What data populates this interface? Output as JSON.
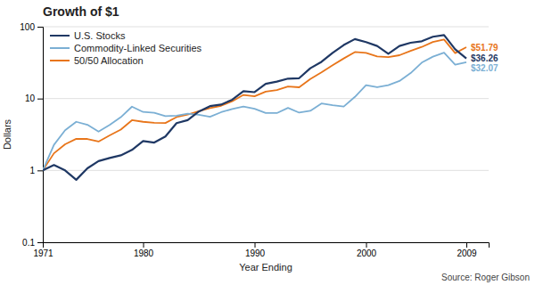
{
  "chart_data": {
    "type": "line",
    "title": "Growth of $1",
    "xlabel": "Year Ending",
    "ylabel": "Dollars",
    "source": "Source: Roger Gibson",
    "x": [
      1971,
      1972,
      1973,
      1974,
      1975,
      1976,
      1977,
      1978,
      1979,
      1980,
      1981,
      1982,
      1983,
      1984,
      1985,
      1986,
      1987,
      1988,
      1989,
      1990,
      1991,
      1992,
      1993,
      1994,
      1995,
      1996,
      1997,
      1998,
      1999,
      2000,
      2001,
      2002,
      2003,
      2004,
      2005,
      2006,
      2007,
      2008,
      2009
    ],
    "series": [
      {
        "name": "50/50 Allocation",
        "color": "#E8751A",
        "values": [
          1.0,
          1.73,
          2.31,
          2.75,
          2.74,
          2.52,
          3.07,
          3.7,
          5.0,
          4.75,
          4.59,
          4.57,
          5.53,
          5.98,
          6.67,
          7.35,
          7.94,
          9.18,
          11.24,
          10.74,
          12.47,
          13.15,
          14.73,
          14.35,
          18.72,
          23.12,
          29.12,
          36.17,
          44.37,
          43.24,
          38.52,
          37.82,
          40.12,
          46.01,
          52.28,
          61.29,
          66.23,
          42.9,
          51.79
        ]
      },
      {
        "name": "Commodity-Linked Securities",
        "color": "#7BAFD4",
        "values": [
          1.0,
          2.27,
          3.62,
          4.75,
          4.32,
          3.46,
          4.29,
          5.51,
          7.71,
          6.51,
          6.35,
          5.71,
          5.79,
          6.15,
          5.94,
          5.58,
          6.46,
          7.18,
          7.73,
          7.21,
          6.31,
          6.28,
          7.43,
          6.37,
          6.76,
          8.55,
          8.06,
          7.75,
          10.56,
          15.39,
          14.36,
          15.35,
          17.57,
          22.6,
          31.66,
          38.29,
          43.47,
          29.56,
          32.07
        ]
      },
      {
        "name": "U.S. Stocks",
        "color": "#1F3864",
        "values": [
          1.0,
          1.19,
          1.0,
          0.74,
          1.07,
          1.35,
          1.49,
          1.62,
          1.93,
          2.56,
          2.44,
          2.96,
          4.55,
          5.01,
          6.61,
          7.84,
          8.25,
          9.65,
          12.7,
          12.28,
          16.02,
          17.22,
          18.94,
          19.21,
          26.4,
          32.43,
          43.17,
          55.56,
          67.29,
          61.15,
          53.93,
          42.03,
          53.93,
          59.79,
          62.74,
          72.54,
          76.56,
          48.38,
          36.26
        ]
      }
    ],
    "annotations": [
      {
        "text": "$51.79",
        "x": 2009,
        "y": 51.79,
        "color": "#E8751A"
      },
      {
        "text": "$36.26",
        "x": 2009,
        "y": 36.26,
        "color": "#1F3864"
      },
      {
        "text": "$32.07",
        "x": 2009,
        "y": 32.07,
        "color": "#7BAFD4"
      }
    ],
    "log": "y",
    "xlim": [
      1971,
      2011
    ],
    "xticks": [
      1971,
      1980,
      1990,
      2000,
      2009
    ],
    "ylim": [
      0.1,
      100
    ],
    "yticks": [
      0.1,
      1,
      10,
      100
    ],
    "grid": true,
    "legend": "upper left"
  }
}
